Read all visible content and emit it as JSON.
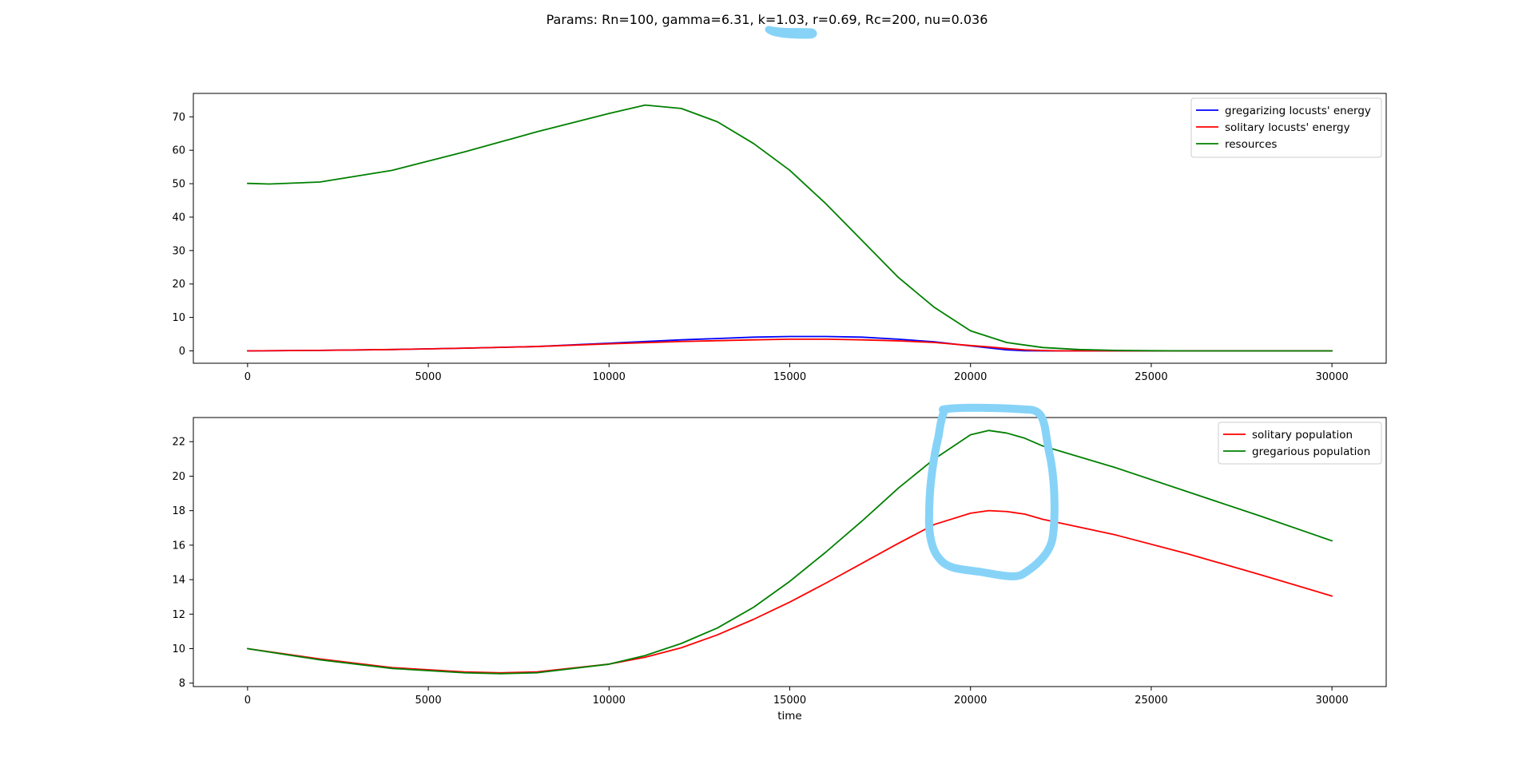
{
  "figure_title": "Params: Rn=100, gamma=6.31, k=1.03, r=0.69, Rc=200, nu=0.036",
  "annotation_color": "#87d3f8",
  "chart_data": [
    {
      "type": "line",
      "title": "",
      "xlabel": "",
      "ylabel": "",
      "xlim": [
        -1500,
        31500
      ],
      "ylim": [
        -3.7,
        77
      ],
      "xticks": [
        0,
        5000,
        10000,
        15000,
        20000,
        25000,
        30000
      ],
      "yticks": [
        0,
        10,
        20,
        30,
        40,
        50,
        60,
        70
      ],
      "legend_position": "upper right",
      "grid": false,
      "series": [
        {
          "name": "gregarizing locusts' energy",
          "color": "#0000ff",
          "x": [
            0,
            2000,
            4000,
            6000,
            8000,
            10000,
            12000,
            14000,
            15000,
            16000,
            17000,
            18000,
            19000,
            20000,
            20500,
            21000,
            21500,
            22000,
            23000,
            24000,
            26000,
            28000,
            30000
          ],
          "y": [
            0,
            0.15,
            0.4,
            0.8,
            1.3,
            2.3,
            3.3,
            4.1,
            4.3,
            4.3,
            4.1,
            3.5,
            2.7,
            1.5,
            0.9,
            0.3,
            0.05,
            0,
            0,
            0,
            0,
            0,
            0
          ]
        },
        {
          "name": "solitary locusts' energy",
          "color": "#ff0000",
          "x": [
            0,
            2000,
            4000,
            6000,
            8000,
            10000,
            12000,
            14000,
            15000,
            16000,
            17000,
            18000,
            19000,
            20000,
            20500,
            21000,
            21500,
            22000,
            22500,
            23000,
            24000,
            26000,
            28000,
            30000
          ],
          "y": [
            0,
            0.15,
            0.4,
            0.8,
            1.3,
            2.1,
            2.8,
            3.3,
            3.5,
            3.5,
            3.3,
            3.0,
            2.5,
            1.6,
            1.2,
            0.7,
            0.3,
            0.1,
            0,
            0,
            0,
            0,
            0,
            0
          ]
        },
        {
          "name": "resources",
          "color": "#008000",
          "x": [
            0,
            600,
            2000,
            4000,
            6000,
            8000,
            10000,
            11000,
            12000,
            13000,
            14000,
            15000,
            16000,
            17000,
            18000,
            19000,
            20000,
            21000,
            22000,
            23000,
            24000,
            25000,
            26000,
            27000,
            28000,
            30000
          ],
          "y": [
            50.1,
            49.9,
            50.5,
            54,
            59.5,
            65.5,
            71,
            73.5,
            72.5,
            68.5,
            62,
            54,
            44,
            33,
            22,
            13,
            6,
            2.5,
            1,
            0.4,
            0.15,
            0.05,
            0,
            0,
            0,
            0
          ]
        }
      ]
    },
    {
      "type": "line",
      "title": "",
      "xlabel": "time",
      "ylabel": "",
      "xlim": [
        -1500,
        31500
      ],
      "ylim": [
        7.8,
        23.4
      ],
      "xticks": [
        0,
        5000,
        10000,
        15000,
        20000,
        25000,
        30000
      ],
      "yticks": [
        8,
        10,
        12,
        14,
        16,
        18,
        20,
        22
      ],
      "legend_position": "upper right",
      "grid": false,
      "series": [
        {
          "name": "solitary population",
          "color": "#ff0000",
          "x": [
            0,
            2000,
            4000,
            6000,
            7000,
            8000,
            10000,
            11000,
            12000,
            13000,
            14000,
            15000,
            16000,
            17000,
            18000,
            19000,
            20000,
            20500,
            21000,
            21500,
            22000,
            24000,
            26000,
            28000,
            30000
          ],
          "y": [
            10,
            9.4,
            8.9,
            8.65,
            8.6,
            8.65,
            9.1,
            9.5,
            10.05,
            10.8,
            11.7,
            12.7,
            13.8,
            14.95,
            16.1,
            17.2,
            17.85,
            18.0,
            17.95,
            17.8,
            17.5,
            16.6,
            15.5,
            14.3,
            13.05
          ]
        },
        {
          "name": "gregarious population",
          "color": "#008000",
          "x": [
            0,
            2000,
            4000,
            6000,
            7000,
            8000,
            10000,
            11000,
            12000,
            13000,
            14000,
            15000,
            16000,
            17000,
            18000,
            19000,
            20000,
            20500,
            21000,
            21500,
            22000,
            24000,
            26000,
            28000,
            30000
          ],
          "y": [
            10,
            9.35,
            8.85,
            8.6,
            8.55,
            8.6,
            9.1,
            9.6,
            10.3,
            11.2,
            12.4,
            13.9,
            15.6,
            17.4,
            19.3,
            21.0,
            22.4,
            22.65,
            22.5,
            22.2,
            21.75,
            20.5,
            19.1,
            17.7,
            16.25
          ]
        }
      ]
    }
  ]
}
